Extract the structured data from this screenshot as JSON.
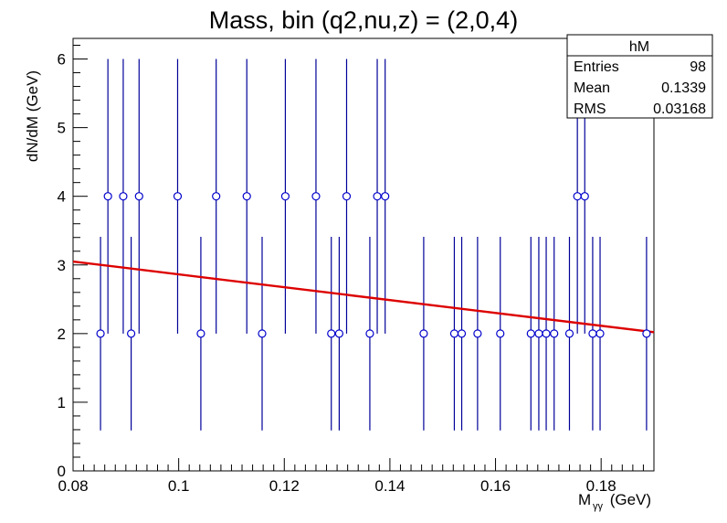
{
  "chart_data": {
    "type": "scatter",
    "title": "Mass, bin (q2,nu,z) = (2,0,4)",
    "xlabel_main": "M",
    "xlabel_sub": "γγ",
    "xlabel_unit": " (GeV)",
    "ylabel": "dN/dM (GeV)",
    "xlim": [
      0.08,
      0.19
    ],
    "ylim": [
      0,
      6.3
    ],
    "x_ticks": [
      0.08,
      0.1,
      0.12,
      0.14,
      0.16,
      0.18
    ],
    "x_tick_labels": [
      "0.08",
      "0.1",
      "0.12",
      "0.14",
      "0.16",
      "0.18"
    ],
    "y_ticks": [
      0,
      1,
      2,
      3,
      4,
      5,
      6
    ],
    "y_tick_labels": [
      "0",
      "1",
      "2",
      "3",
      "4",
      "5",
      "6"
    ],
    "grid": false,
    "legend": "none",
    "marker_color": "#0000cc",
    "errorbar_color": "#000099",
    "fit_color": "#dd0000",
    "points": [
      {
        "x": 0.0852,
        "y": 2,
        "ylo": 0.59,
        "yhi": 3.41
      },
      {
        "x": 0.0866,
        "y": 4,
        "ylo": 2,
        "yhi": 6
      },
      {
        "x": 0.0895,
        "y": 4,
        "ylo": 2,
        "yhi": 6
      },
      {
        "x": 0.091,
        "y": 2,
        "ylo": 0.59,
        "yhi": 3.41
      },
      {
        "x": 0.0925,
        "y": 4,
        "ylo": 2,
        "yhi": 6
      },
      {
        "x": 0.0998,
        "y": 4,
        "ylo": 2,
        "yhi": 6
      },
      {
        "x": 0.1042,
        "y": 2,
        "ylo": 0.59,
        "yhi": 3.41
      },
      {
        "x": 0.1071,
        "y": 4,
        "ylo": 2,
        "yhi": 6
      },
      {
        "x": 0.1129,
        "y": 4,
        "ylo": 2,
        "yhi": 6
      },
      {
        "x": 0.1158,
        "y": 2,
        "ylo": 0.59,
        "yhi": 3.41
      },
      {
        "x": 0.1202,
        "y": 4,
        "ylo": 2,
        "yhi": 6
      },
      {
        "x": 0.126,
        "y": 4,
        "ylo": 2,
        "yhi": 6
      },
      {
        "x": 0.1289,
        "y": 2,
        "ylo": 0.59,
        "yhi": 3.41
      },
      {
        "x": 0.1304,
        "y": 2,
        "ylo": 0.59,
        "yhi": 3.41
      },
      {
        "x": 0.1318,
        "y": 4,
        "ylo": 2,
        "yhi": 6
      },
      {
        "x": 0.1362,
        "y": 2,
        "ylo": 0.59,
        "yhi": 3.41
      },
      {
        "x": 0.1376,
        "y": 4,
        "ylo": 2,
        "yhi": 6
      },
      {
        "x": 0.1391,
        "y": 4,
        "ylo": 2,
        "yhi": 6
      },
      {
        "x": 0.1464,
        "y": 2,
        "ylo": 0.59,
        "yhi": 3.41
      },
      {
        "x": 0.1522,
        "y": 2,
        "ylo": 0.59,
        "yhi": 3.41
      },
      {
        "x": 0.1536,
        "y": 2,
        "ylo": 0.59,
        "yhi": 3.41
      },
      {
        "x": 0.1566,
        "y": 2,
        "ylo": 0.59,
        "yhi": 3.41
      },
      {
        "x": 0.1609,
        "y": 2,
        "ylo": 0.59,
        "yhi": 3.41
      },
      {
        "x": 0.1667,
        "y": 2,
        "ylo": 0.59,
        "yhi": 3.41
      },
      {
        "x": 0.1682,
        "y": 2,
        "ylo": 0.59,
        "yhi": 3.41
      },
      {
        "x": 0.1696,
        "y": 2,
        "ylo": 0.59,
        "yhi": 3.41
      },
      {
        "x": 0.1711,
        "y": 2,
        "ylo": 0.59,
        "yhi": 3.41
      },
      {
        "x": 0.174,
        "y": 2,
        "ylo": 0.59,
        "yhi": 3.41
      },
      {
        "x": 0.1755,
        "y": 4,
        "ylo": 2,
        "yhi": 6
      },
      {
        "x": 0.1769,
        "y": 4,
        "ylo": 2,
        "yhi": 6
      },
      {
        "x": 0.1784,
        "y": 2,
        "ylo": 0.59,
        "yhi": 3.41
      },
      {
        "x": 0.1798,
        "y": 2,
        "ylo": 0.59,
        "yhi": 3.41
      },
      {
        "x": 0.1886,
        "y": 2,
        "ylo": 0.59,
        "yhi": 3.41
      }
    ],
    "fit_line": {
      "x": [
        0.08,
        0.19
      ],
      "y": [
        3.05,
        2.02
      ]
    }
  },
  "stats_box": {
    "title": "hM",
    "rows": [
      {
        "label": "Entries",
        "value": "98"
      },
      {
        "label": "Mean",
        "value": "0.1339"
      },
      {
        "label": "RMS",
        "value": "0.03168"
      }
    ]
  }
}
